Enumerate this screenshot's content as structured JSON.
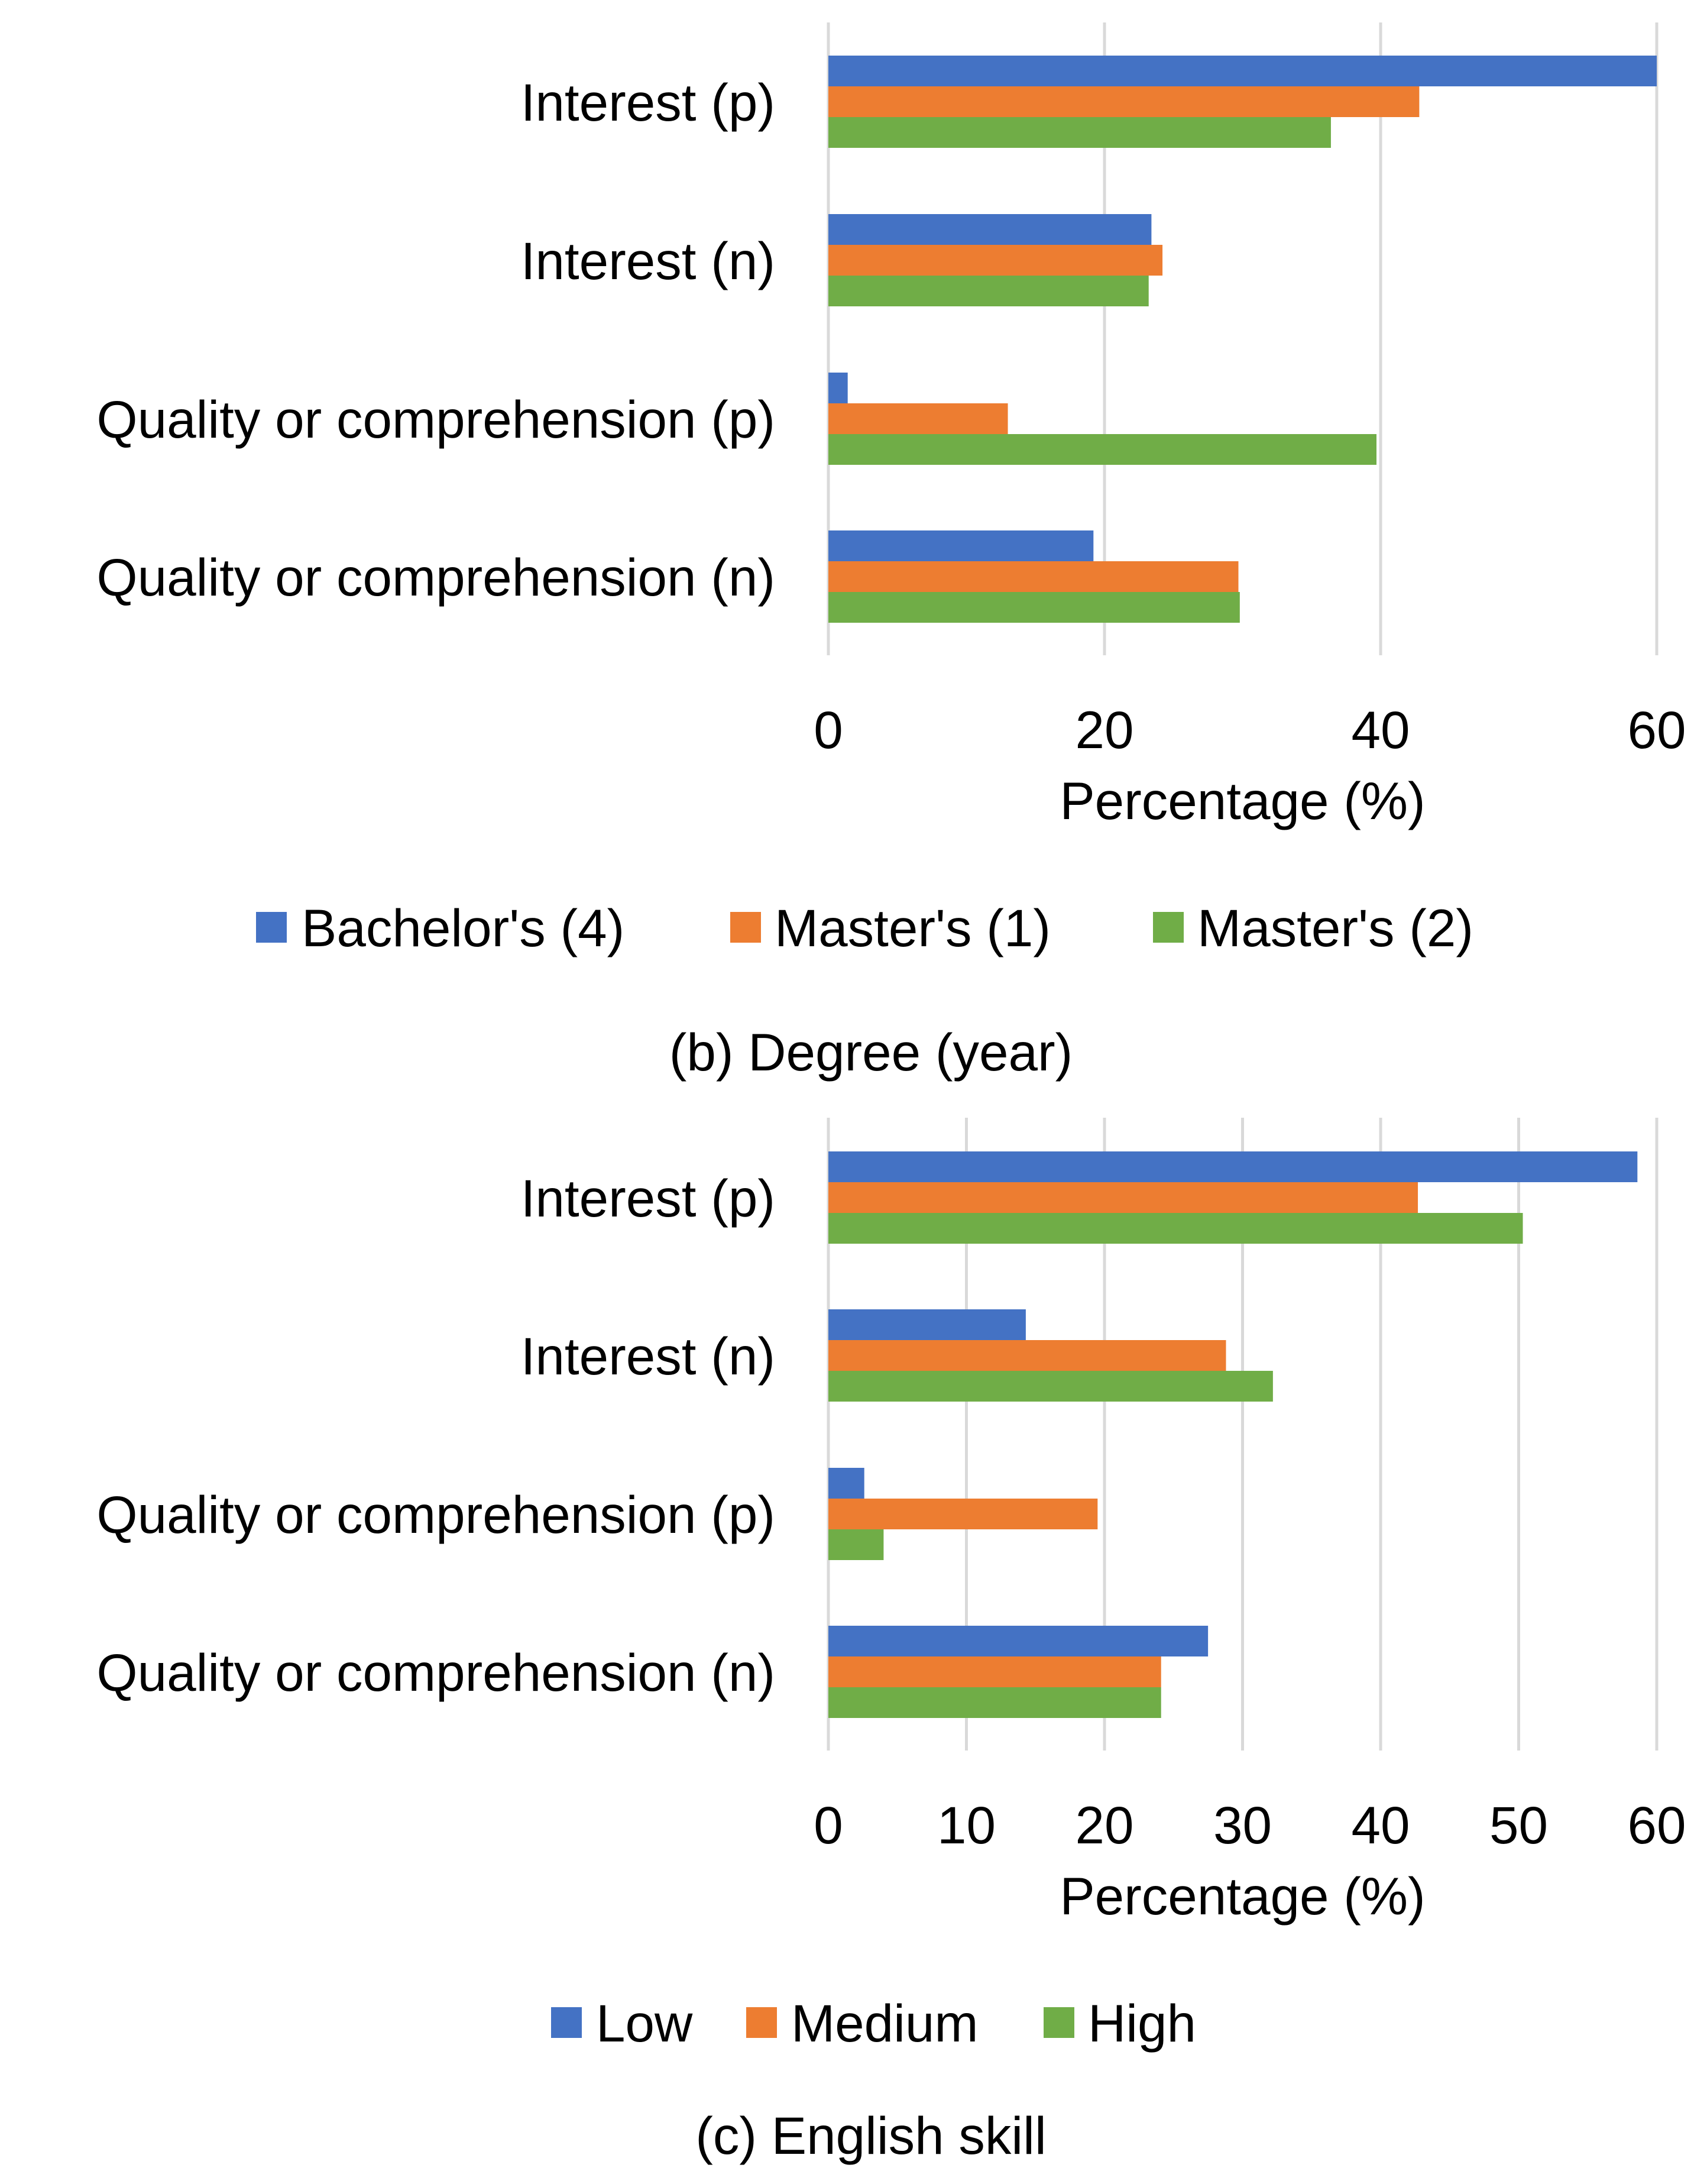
{
  "colors": {
    "series1": "#4472C4",
    "series2": "#ED7D31",
    "series3": "#70AD47",
    "grid": "#d9d9d9"
  },
  "chart_data": [
    {
      "type": "bar",
      "orientation": "horizontal",
      "title": "(b) Degree (year)",
      "categories": [
        "Interest (p)",
        "Interest (n)",
        "Quality or comprehension (p)",
        "Quality or comprehension (n)"
      ],
      "series": [
        {
          "name": "Bachelor's (4)",
          "values": [
            60,
            23.4,
            1.4,
            19.2
          ]
        },
        {
          "name": "Master's (1)",
          "values": [
            42.8,
            24.2,
            13.0,
            29.7
          ]
        },
        {
          "name": "Master's (2)",
          "values": [
            36.4,
            23.2,
            39.7,
            29.8
          ]
        }
      ],
      "xlabel": "Percentage (%)",
      "xlim": [
        0,
        60
      ],
      "xticks": [
        0,
        20,
        40,
        60
      ],
      "grid": true,
      "legend": "bottom"
    },
    {
      "type": "bar",
      "orientation": "horizontal",
      "title": "(c) English skill",
      "categories": [
        "Interest (p)",
        "Interest (n)",
        "Quality or comprehension (p)",
        "Quality or comprehension (n)"
      ],
      "series": [
        {
          "name": "Low",
          "values": [
            58.6,
            14.3,
            2.6,
            27.5
          ]
        },
        {
          "name": "Medium",
          "values": [
            42.7,
            28.8,
            19.5,
            24.1
          ]
        },
        {
          "name": "High",
          "values": [
            50.3,
            32.2,
            4.0,
            24.1
          ]
        }
      ],
      "xlabel": "Percentage (%)",
      "xlim": [
        0,
        60
      ],
      "xticks": [
        0,
        10,
        20,
        30,
        40,
        50,
        60
      ],
      "grid": true,
      "legend": "bottom"
    }
  ]
}
